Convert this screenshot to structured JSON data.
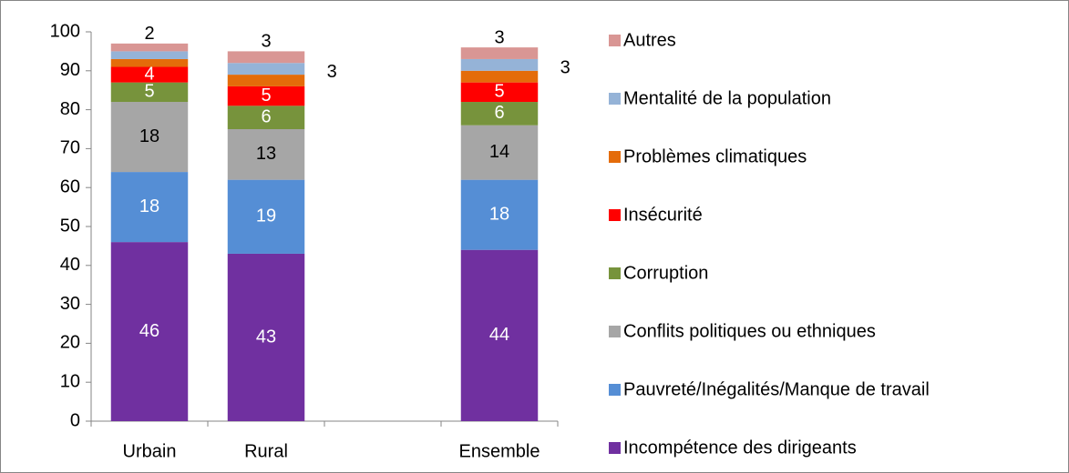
{
  "chart_data": {
    "type": "bar",
    "stacked": true,
    "categories": [
      "Urbain",
      "Rural",
      null,
      "Ensemble"
    ],
    "ylim": [
      0,
      100
    ],
    "yticks": [
      0,
      10,
      20,
      30,
      40,
      50,
      60,
      70,
      80,
      90,
      100
    ],
    "legend": "right",
    "series": [
      {
        "name": "Incompétence des dirigeants",
        "color": "#7030a0",
        "values": [
          46,
          43,
          null,
          44
        ],
        "value_labels": [
          "46",
          "43",
          null,
          "44"
        ],
        "label_color": "#ffffff"
      },
      {
        "name": "Pauvreté/Inégalités/Manque de travail",
        "color": "#558ed5",
        "values": [
          18,
          19,
          null,
          18
        ],
        "value_labels": [
          "18",
          "19",
          null,
          "18"
        ],
        "label_color": "#ffffff"
      },
      {
        "name": "Conflits politiques ou ethniques",
        "color": "#a6a6a6",
        "values": [
          18,
          13,
          null,
          14
        ],
        "value_labels": [
          "18",
          "13",
          null,
          "14"
        ],
        "label_color": "#000000"
      },
      {
        "name": "Corruption",
        "color": "#77933c",
        "values": [
          5,
          6,
          null,
          6
        ],
        "value_labels": [
          "5",
          "6",
          null,
          "6"
        ],
        "label_color": "#ffffff"
      },
      {
        "name": "Insécurité",
        "color": "#ff0000",
        "values": [
          4,
          5,
          null,
          5
        ],
        "value_labels": [
          "4",
          "5",
          null,
          "5"
        ],
        "label_color": "#ffffff"
      },
      {
        "name": "Problèmes climatiques",
        "color": "#e46c0a",
        "values": [
          2,
          3,
          null,
          3
        ],
        "value_labels": [
          null,
          null,
          null,
          null
        ]
      },
      {
        "name": "Mentalité de la population",
        "color": "#95b3d7",
        "values": [
          2,
          3,
          null,
          3
        ],
        "value_labels": [
          null,
          "3",
          null,
          "3"
        ],
        "label_position": "side"
      },
      {
        "name": "Autres",
        "color": "#d99694",
        "values": [
          2,
          3,
          null,
          3
        ],
        "value_labels": [
          "2",
          "3",
          null,
          "3"
        ],
        "label_position": "top"
      }
    ]
  }
}
